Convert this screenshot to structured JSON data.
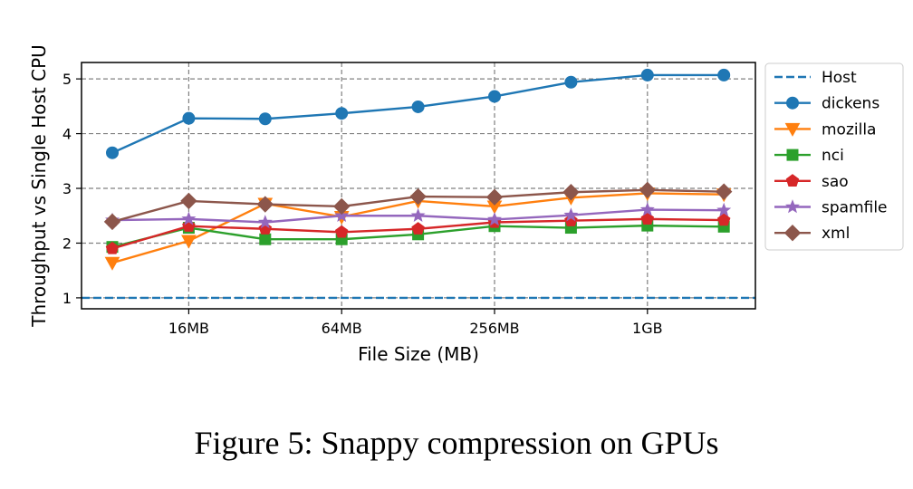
{
  "caption": "Figure 5: Snappy compression on GPUs",
  "chart_data": {
    "type": "line",
    "xlabel": "File Size (MB)",
    "ylabel": "Throughput vs Single Host CPU",
    "x_ticks": [
      "16MB",
      "64MB",
      "256MB",
      "1GB"
    ],
    "x": [
      "8MB",
      "16MB",
      "32MB",
      "64MB",
      "128MB",
      "256MB",
      "512MB",
      "1GB",
      "2GB"
    ],
    "y_ticks": [
      1,
      2,
      3,
      4,
      5
    ],
    "ylim": [
      0.8,
      5.3
    ],
    "grid": true,
    "legend_position": "outside right",
    "series": [
      {
        "name": "Host",
        "style": "dashed",
        "marker": "none",
        "color": "#1f77b4",
        "values": [
          1,
          1,
          1,
          1,
          1,
          1,
          1,
          1,
          1
        ]
      },
      {
        "name": "dickens",
        "marker": "circle",
        "color": "#1f77b4",
        "values": [
          3.65,
          4.28,
          4.27,
          4.37,
          4.49,
          4.68,
          4.94,
          5.07,
          5.07
        ]
      },
      {
        "name": "mozilla",
        "marker": "triangle-down",
        "color": "#ff7f0e",
        "values": [
          1.64,
          2.04,
          2.72,
          2.48,
          2.77,
          2.67,
          2.83,
          2.91,
          2.89
        ]
      },
      {
        "name": "nci",
        "marker": "square",
        "color": "#2ca02c",
        "values": [
          1.93,
          2.28,
          2.07,
          2.07,
          2.16,
          2.31,
          2.28,
          2.32,
          2.3
        ]
      },
      {
        "name": "sao",
        "marker": "pentagon",
        "color": "#d62728",
        "values": [
          1.9,
          2.31,
          2.26,
          2.2,
          2.26,
          2.38,
          2.41,
          2.44,
          2.42
        ]
      },
      {
        "name": "spamfile",
        "marker": "star",
        "color": "#9467bd",
        "values": [
          2.42,
          2.44,
          2.38,
          2.5,
          2.5,
          2.43,
          2.51,
          2.61,
          2.6
        ]
      },
      {
        "name": "xml",
        "marker": "diamond",
        "color": "#8c564b",
        "values": [
          2.39,
          2.77,
          2.71,
          2.67,
          2.85,
          2.84,
          2.93,
          2.97,
          2.94
        ]
      }
    ]
  }
}
